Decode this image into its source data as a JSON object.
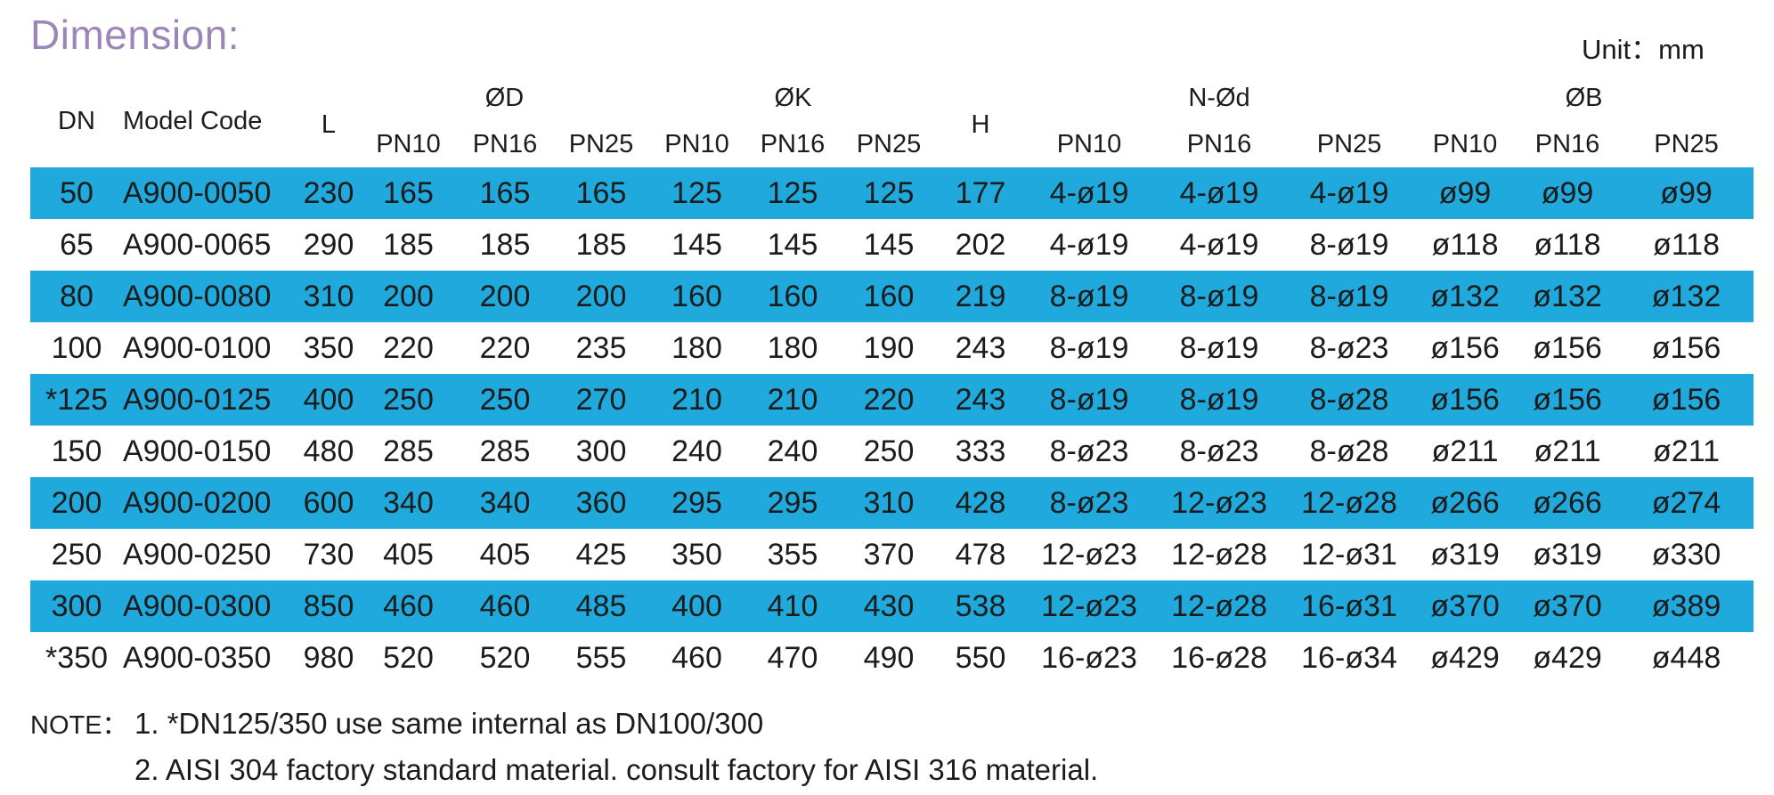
{
  "title": "Dimension:",
  "unit": "Unit：mm",
  "header": {
    "dn": "DN",
    "model_code": "Model Code",
    "l": "L",
    "h": "H",
    "groups": {
      "od": "ØD",
      "ok": "ØK",
      "nod": "N-Ød",
      "ob": "ØB"
    },
    "pn": [
      "PN10",
      "PN16",
      "PN25"
    ]
  },
  "rows": [
    {
      "dn": "50",
      "code": "A900-0050",
      "l": "230",
      "d": [
        "165",
        "165",
        "165"
      ],
      "k": [
        "125",
        "125",
        "125"
      ],
      "h": "177",
      "nd": [
        "4-ø19",
        "4-ø19",
        "4-ø19"
      ],
      "b": [
        "ø99",
        "ø99",
        "ø99"
      ]
    },
    {
      "dn": "65",
      "code": "A900-0065",
      "l": "290",
      "d": [
        "185",
        "185",
        "185"
      ],
      "k": [
        "145",
        "145",
        "145"
      ],
      "h": "202",
      "nd": [
        "4-ø19",
        "4-ø19",
        "8-ø19"
      ],
      "b": [
        "ø118",
        "ø118",
        "ø118"
      ]
    },
    {
      "dn": "80",
      "code": "A900-0080",
      "l": "310",
      "d": [
        "200",
        "200",
        "200"
      ],
      "k": [
        "160",
        "160",
        "160"
      ],
      "h": "219",
      "nd": [
        "8-ø19",
        "8-ø19",
        "8-ø19"
      ],
      "b": [
        "ø132",
        "ø132",
        "ø132"
      ]
    },
    {
      "dn": "100",
      "code": "A900-0100",
      "l": "350",
      "d": [
        "220",
        "220",
        "235"
      ],
      "k": [
        "180",
        "180",
        "190"
      ],
      "h": "243",
      "nd": [
        "8-ø19",
        "8-ø19",
        "8-ø23"
      ],
      "b": [
        "ø156",
        "ø156",
        "ø156"
      ]
    },
    {
      "dn": "*125",
      "code": "A900-0125",
      "l": "400",
      "d": [
        "250",
        "250",
        "270"
      ],
      "k": [
        "210",
        "210",
        "220"
      ],
      "h": "243",
      "nd": [
        "8-ø19",
        "8-ø19",
        "8-ø28"
      ],
      "b": [
        "ø156",
        "ø156",
        "ø156"
      ]
    },
    {
      "dn": "150",
      "code": "A900-0150",
      "l": "480",
      "d": [
        "285",
        "285",
        "300"
      ],
      "k": [
        "240",
        "240",
        "250"
      ],
      "h": "333",
      "nd": [
        "8-ø23",
        "8-ø23",
        "8-ø28"
      ],
      "b": [
        "ø211",
        "ø211",
        "ø211"
      ]
    },
    {
      "dn": "200",
      "code": "A900-0200",
      "l": "600",
      "d": [
        "340",
        "340",
        "360"
      ],
      "k": [
        "295",
        "295",
        "310"
      ],
      "h": "428",
      "nd": [
        "8-ø23",
        "12-ø23",
        "12-ø28"
      ],
      "b": [
        "ø266",
        "ø266",
        "ø274"
      ]
    },
    {
      "dn": "250",
      "code": "A900-0250",
      "l": "730",
      "d": [
        "405",
        "405",
        "425"
      ],
      "k": [
        "350",
        "355",
        "370"
      ],
      "h": "478",
      "nd": [
        "12-ø23",
        "12-ø28",
        "12-ø31"
      ],
      "b": [
        "ø319",
        "ø319",
        "ø330"
      ]
    },
    {
      "dn": "300",
      "code": "A900-0300",
      "l": "850",
      "d": [
        "460",
        "460",
        "485"
      ],
      "k": [
        "400",
        "410",
        "430"
      ],
      "h": "538",
      "nd": [
        "12-ø23",
        "12-ø28",
        "16-ø31"
      ],
      "b": [
        "ø370",
        "ø370",
        "ø389"
      ]
    },
    {
      "dn": "*350",
      "code": "A900-0350",
      "l": "980",
      "d": [
        "520",
        "520",
        "555"
      ],
      "k": [
        "460",
        "470",
        "490"
      ],
      "h": "550",
      "nd": [
        "16-ø23",
        "16-ø28",
        "16-ø34"
      ],
      "b": [
        "ø429",
        "ø429",
        "ø448"
      ]
    }
  ],
  "note": {
    "label": "NOTE：",
    "lines": [
      "1. *DN125/350 use same internal as DN100/300",
      "2. AISI 304 factory standard material. consult factory for AISI 316 material."
    ]
  },
  "colors": {
    "row_highlight": "#1fa9dc",
    "title": "#9b86b9",
    "text": "#1c1c1c"
  }
}
